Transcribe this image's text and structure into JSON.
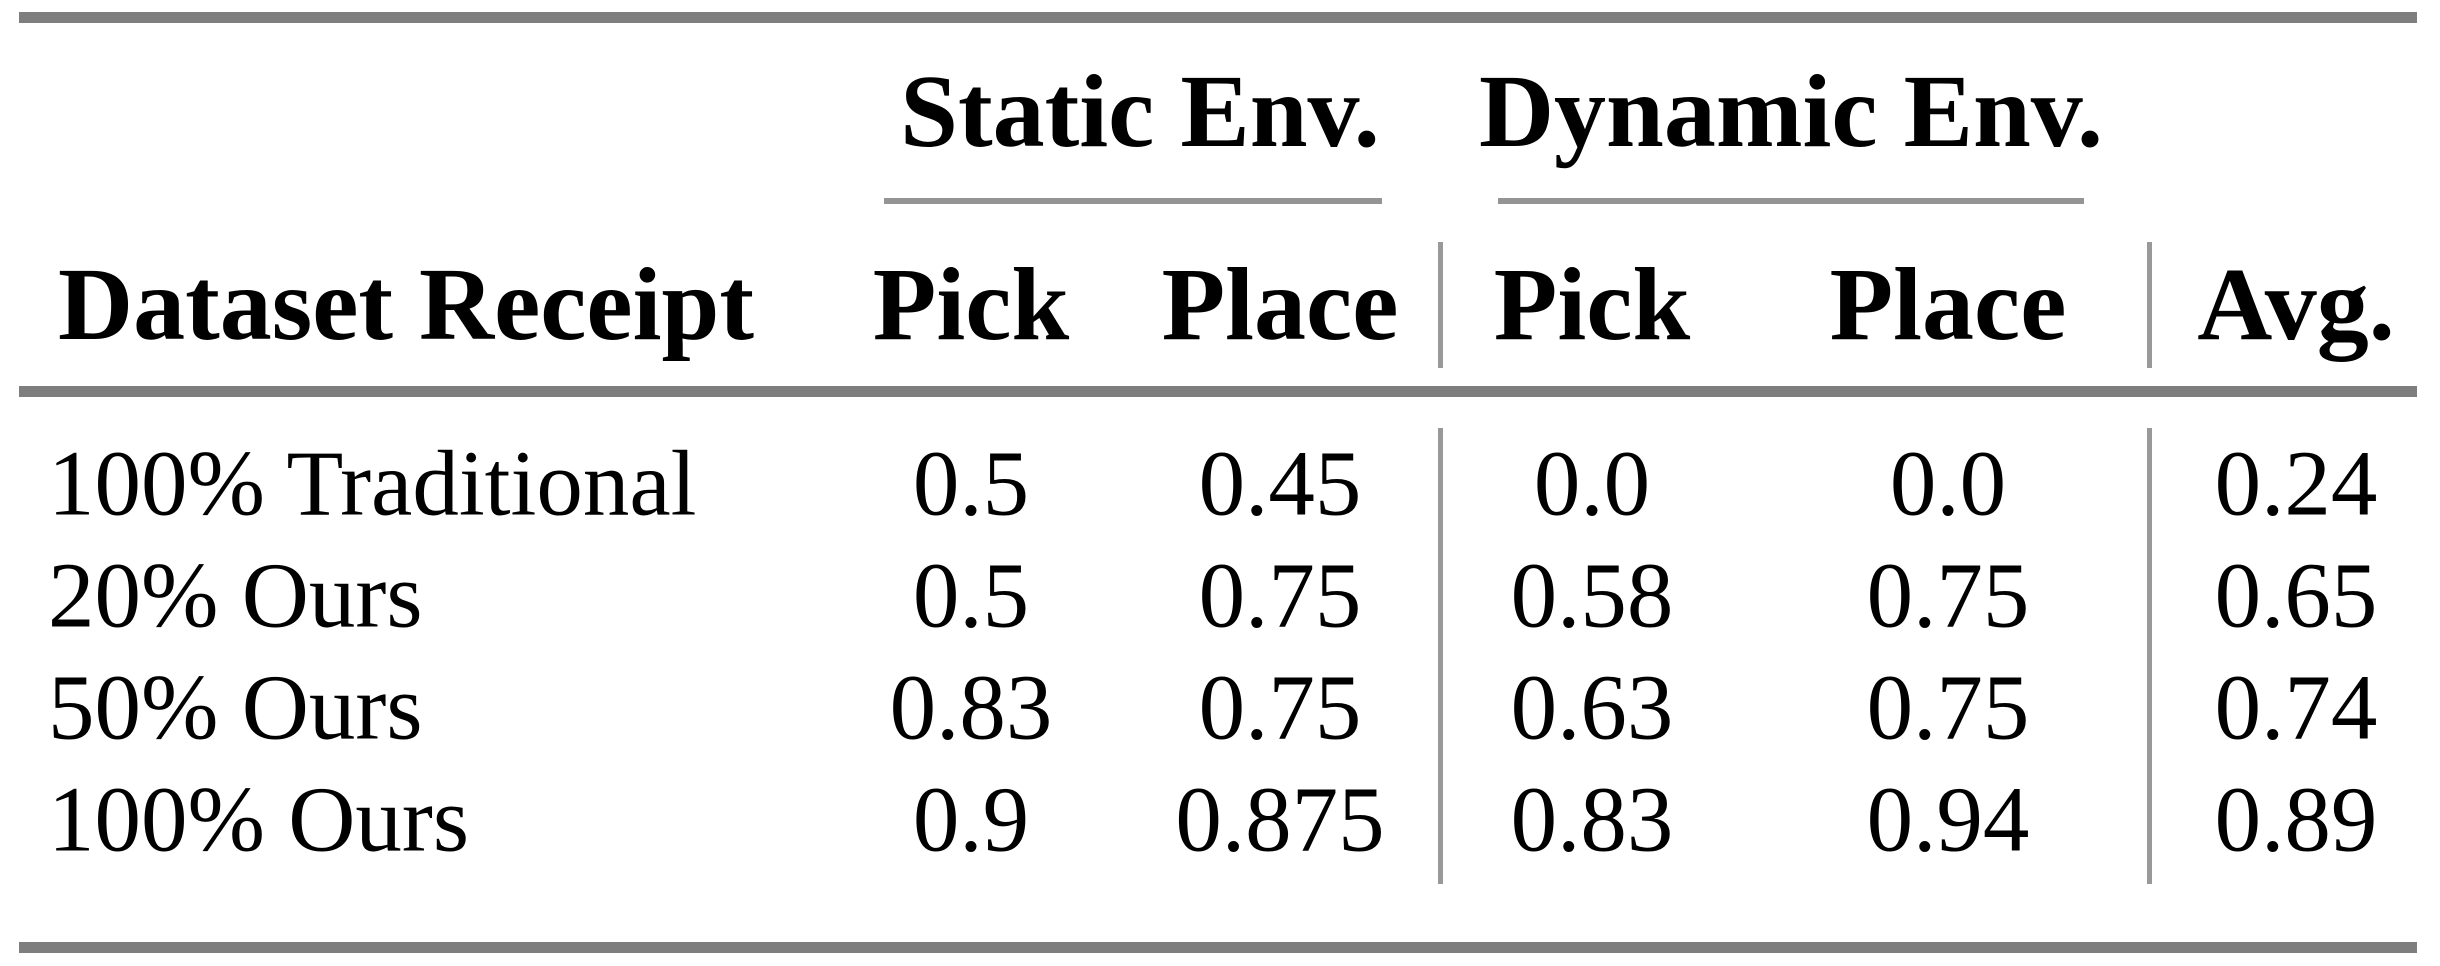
{
  "table": {
    "group_headers": {
      "static": "Static Env.",
      "dynamic": "Dynamic Env."
    },
    "columns": {
      "row_label": "Dataset Receipt",
      "static_pick": "Pick",
      "static_place": "Place",
      "dynamic_pick": "Pick",
      "dynamic_place": "Place",
      "avg": "Avg."
    },
    "rows": [
      {
        "label": "100% Traditional",
        "values": [
          "0.5",
          "0.45",
          "0.0",
          "0.0",
          "0.24"
        ]
      },
      {
        "label": "20% Ours",
        "values": [
          "0.5",
          "0.75",
          "0.58",
          "0.75",
          "0.65"
        ]
      },
      {
        "label": "50% Ours",
        "values": [
          "0.83",
          "0.75",
          "0.63",
          "0.75",
          "0.74"
        ]
      },
      {
        "label": "100% Ours",
        "values": [
          "0.9",
          "0.875",
          "0.83",
          "0.94",
          "0.89"
        ]
      }
    ],
    "colors": {
      "thick_rule": "#7e7e7e",
      "thin_rule": "#949494",
      "separator": "#999999",
      "text": "#000000",
      "background": "#ffffff"
    }
  },
  "chart_data": {
    "type": "table",
    "title": "",
    "column_groups": [
      {
        "label": "Static Env.",
        "spans": [
          "Pick",
          "Place"
        ]
      },
      {
        "label": "Dynamic Env.",
        "spans": [
          "Pick",
          "Place"
        ]
      }
    ],
    "columns": [
      "Dataset Receipt",
      "Static Env. Pick",
      "Static Env. Place",
      "Dynamic Env. Pick",
      "Dynamic Env. Place",
      "Avg."
    ],
    "rows": [
      [
        "100% Traditional",
        0.5,
        0.45,
        0.0,
        0.0,
        0.24
      ],
      [
        "20% Ours",
        0.5,
        0.75,
        0.58,
        0.75,
        0.65
      ],
      [
        "50% Ours",
        0.83,
        0.75,
        0.63,
        0.75,
        0.74
      ],
      [
        "100% Ours",
        0.9,
        0.875,
        0.83,
        0.94,
        0.89
      ]
    ]
  }
}
